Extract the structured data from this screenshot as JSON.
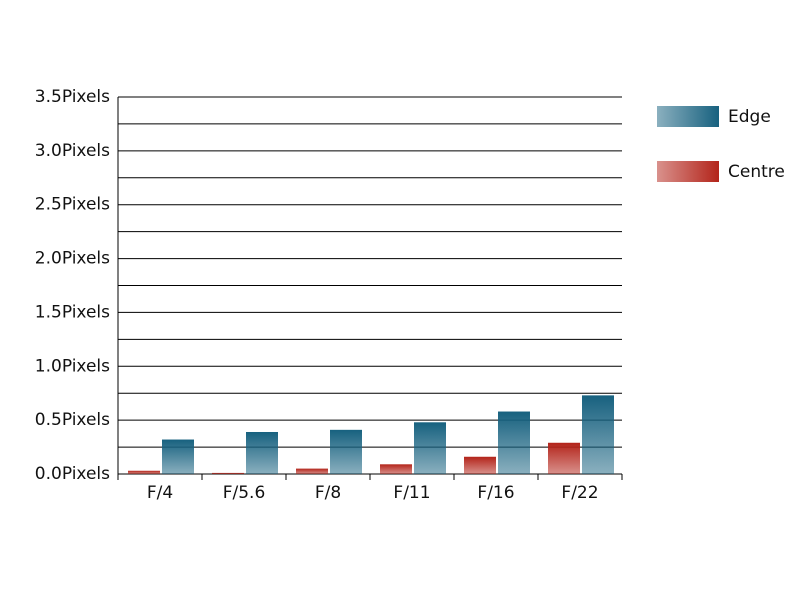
{
  "chart_data": {
    "type": "bar",
    "categories": [
      "F/4",
      "F/5.6",
      "F/8",
      "F/11",
      "F/16",
      "F/22"
    ],
    "series": [
      {
        "name": "Edge",
        "color": "#17617f",
        "values": [
          0.32,
          0.39,
          0.41,
          0.48,
          0.58,
          0.73
        ]
      },
      {
        "name": "Centre",
        "color": "#b3241a",
        "values": [
          0.03,
          0.01,
          0.05,
          0.09,
          0.16,
          0.29
        ]
      }
    ],
    "ylim": [
      0,
      3.5
    ],
    "yticks": [
      {
        "value": 0,
        "label": "0.0Pixels"
      },
      {
        "value": 0.5,
        "label": "0.5Pixels"
      },
      {
        "value": 1,
        "label": "1.0Pixels"
      },
      {
        "value": 1.5,
        "label": "1.5Pixels"
      },
      {
        "value": 2,
        "label": "2.0Pixels"
      },
      {
        "value": 2.5,
        "label": "2.5Pixels"
      },
      {
        "value": 3,
        "label": "3.0Pixels"
      },
      {
        "value": 3.5,
        "label": "3.5Pixels"
      }
    ],
    "minor_yticks": [
      0.25,
      0.75,
      1.25,
      1.75,
      2.25,
      2.75,
      3.25
    ],
    "grid": true,
    "legend": "right"
  }
}
